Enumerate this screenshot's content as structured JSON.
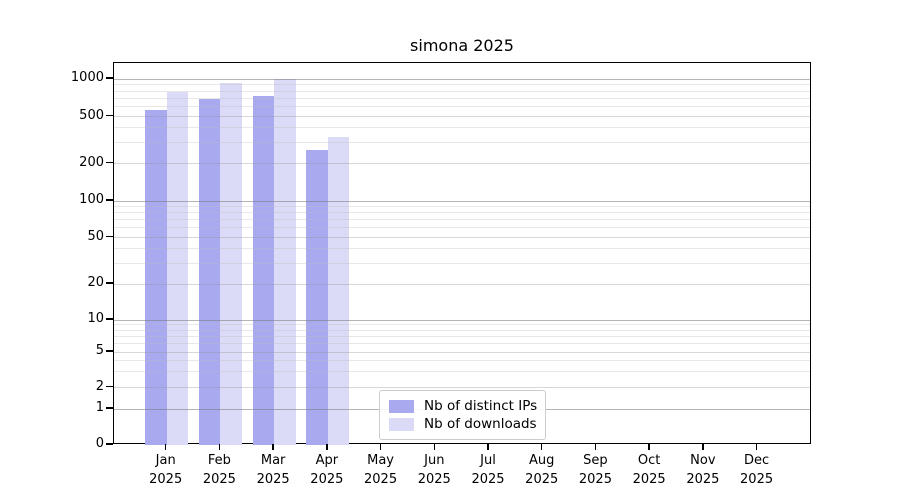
{
  "chart_data": {
    "type": "bar",
    "title": "simona 2025",
    "categories": [
      "Jan",
      "Feb",
      "Mar",
      "Apr",
      "May",
      "Jun",
      "Jul",
      "Aug",
      "Sep",
      "Oct",
      "Nov",
      "Dec"
    ],
    "year_label": "2025",
    "series": [
      {
        "name": "Nb of distinct IPs",
        "color": "#a9a9f0",
        "values": [
          560,
          690,
          730,
          260,
          null,
          null,
          null,
          null,
          null,
          null,
          null,
          null
        ]
      },
      {
        "name": "Nb of downloads",
        "color": "#dbdbf7",
        "values": [
          790,
          930,
          1000,
          335,
          null,
          null,
          null,
          null,
          null,
          null,
          null,
          null
        ]
      }
    ],
    "xlabel": "",
    "ylabel": "",
    "yscale": "symlog",
    "y_ticks": [
      0,
      1,
      2,
      5,
      10,
      20,
      50,
      100,
      200,
      500,
      1000
    ],
    "ylim": [
      0,
      1300
    ],
    "grid": true,
    "legend_position": "bottom-center"
  }
}
